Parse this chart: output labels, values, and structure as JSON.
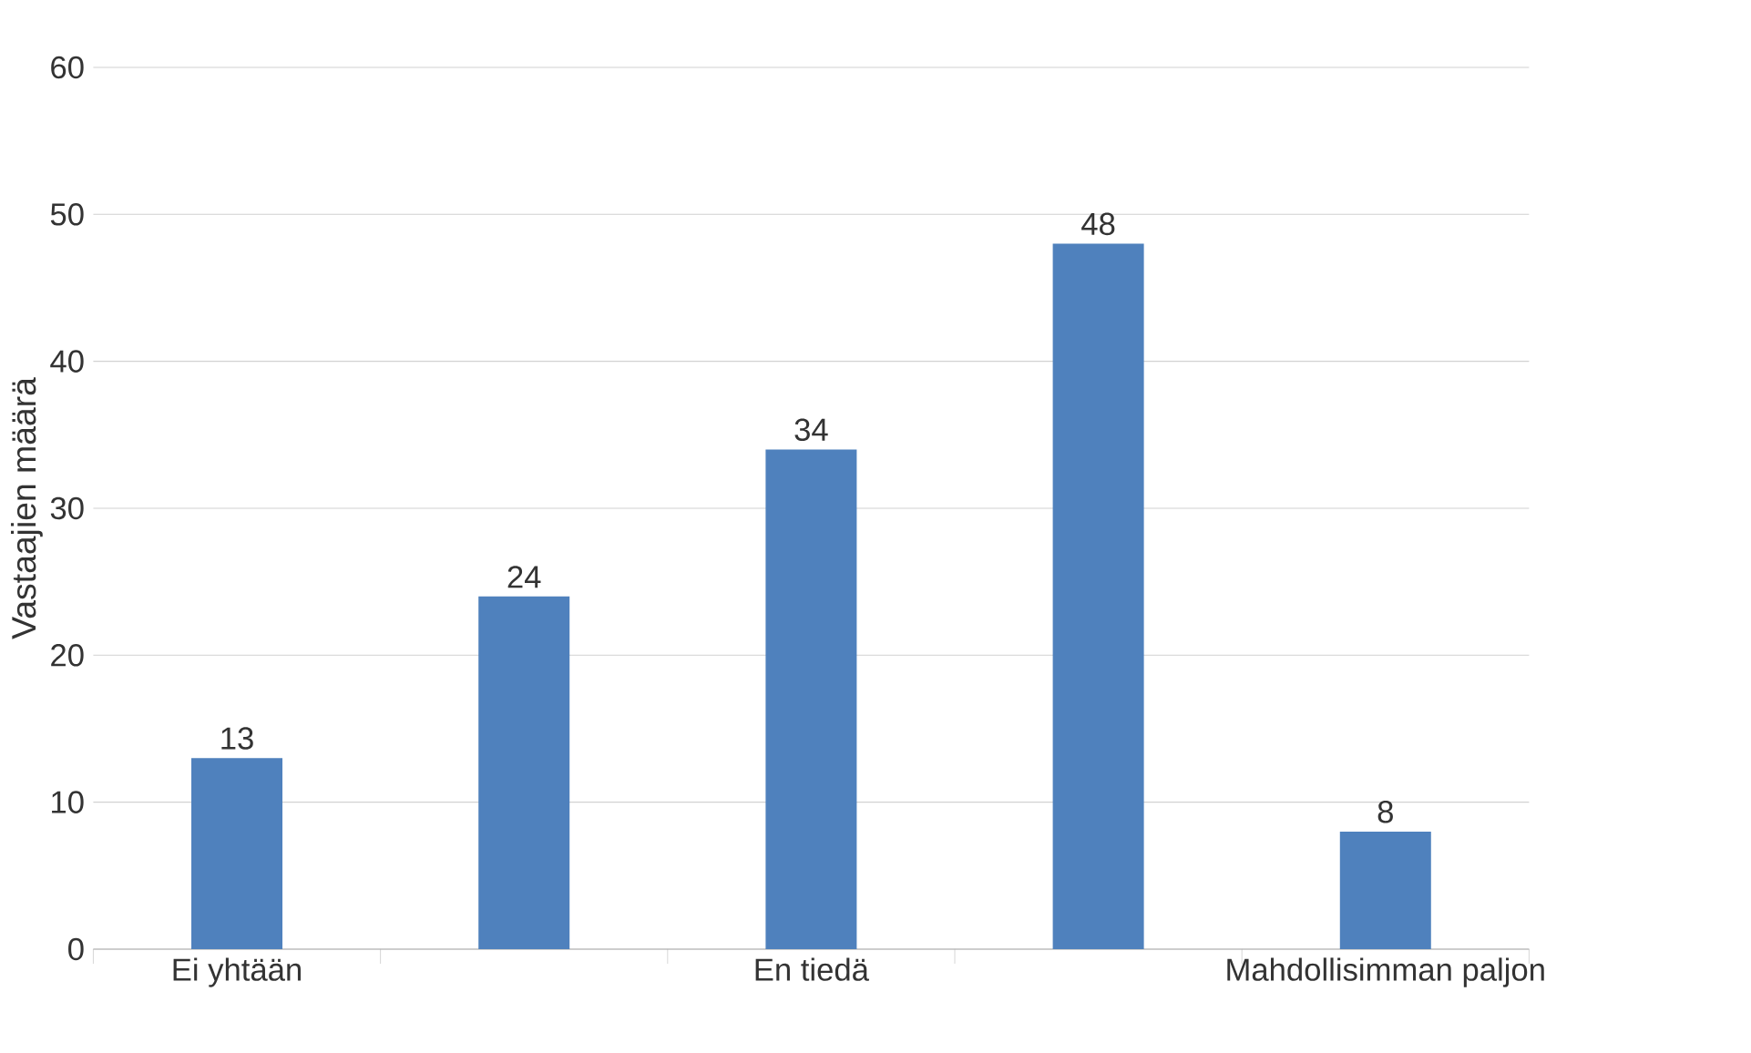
{
  "chart_data": {
    "type": "bar",
    "ylabel": "Vastaajien määrä",
    "categories": [
      "Ei yhtään",
      null,
      "En tiedä",
      null,
      "Mahdollisimman paljon"
    ],
    "values": [
      13,
      24,
      34,
      48,
      8
    ],
    "color": "#4f81bd",
    "ylim": [
      0,
      60
    ],
    "yticks": [
      0,
      10,
      20,
      30,
      40,
      50,
      60
    ],
    "grid": "y",
    "data_labels": true
  }
}
